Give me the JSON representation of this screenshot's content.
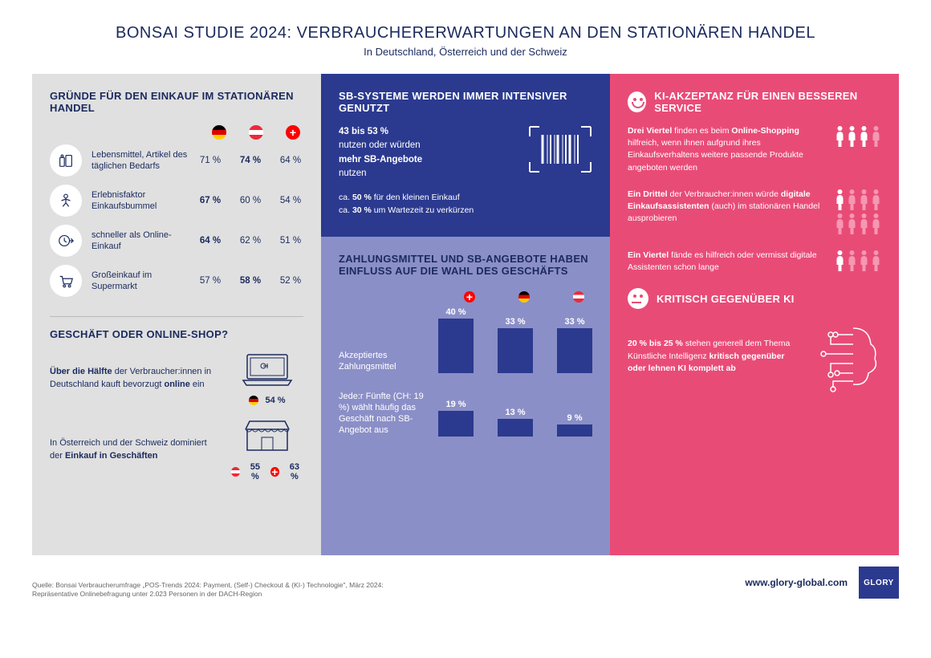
{
  "header": {
    "title": "BONSAI STUDIE 2024: VERBRAUCHERERWARTUNGEN AN DEN STATIONÄREN HANDEL",
    "subtitle": "In Deutschland, Österreich und der Schweiz"
  },
  "colors": {
    "primary_blue": "#2b3a8f",
    "text_blue": "#1a2a5e",
    "light_gray_bg": "#e0e0e0",
    "lavender_bg": "#8b8fc7",
    "pink_bg": "#e94b77",
    "pink_light": "#f598b2"
  },
  "left": {
    "reasons_title": "GRÜNDE FÜR DEN EINKAUF IM STATIONÄREN HANDEL",
    "rows": [
      {
        "label": "Lebensmittel, Artikel des täglichen Bedarfs",
        "de": "71 %",
        "at": "74 %",
        "ch": "64 %",
        "bold_idx": 1
      },
      {
        "label": "Erlebnisfaktor Einkaufsbummel",
        "de": "67 %",
        "at": "60 %",
        "ch": "54 %",
        "bold_idx": 0
      },
      {
        "label": "schneller als Online-Einkauf",
        "de": "64 %",
        "at": "62 %",
        "ch": "51 %",
        "bold_idx": 0
      },
      {
        "label": "Großeinkauf im Supermarkt",
        "de": "57 %",
        "at": "58 %",
        "ch": "52 %",
        "bold_idx": 1
      }
    ],
    "shop_title": "GESCHÄFT ODER ONLINE-SHOP?",
    "shop_de_text": "<b>Über die Hälfte</b> der Verbraucher:innen in Deutschland kauft bevorzugt <b>online</b> ein",
    "shop_de_pct": "54 %",
    "shop_atch_text": "In Österreich und der Schweiz dominiert der <b>Einkauf in Geschäften</b>",
    "shop_at_pct": "55 %",
    "shop_ch_pct": "63 %"
  },
  "middle": {
    "top_title": "SB-SYSTEME WERDEN IMMER INTENSIVER GENUTZT",
    "top_main": "<b>43 bis 53 %</b><br>nutzen oder würden<br><b>mehr SB-Angebote</b><br>nutzen",
    "top_sub1": "ca. <b>50 %</b> für den kleinen Einkauf",
    "top_sub2": "ca. <b>30 %</b> um Wartezeit zu verkürzen",
    "bot_title": "ZAHLUNGSMITTEL UND SB-ANGEBOTE HABEN EINFLUSS AUF DIE WAHL DES GESCHÄFTS",
    "bar1": {
      "label": "Akzeptiertes Zahlungsmittel",
      "values": [
        {
          "flag": "ch",
          "pct": "40 %",
          "height": 68
        },
        {
          "flag": "de",
          "pct": "33 %",
          "height": 56
        },
        {
          "flag": "at",
          "pct": "33 %",
          "height": 56
        }
      ]
    },
    "bar2": {
      "label": "Jede:r Fünfte (CH: 19 %) wählt häufig das Geschäft nach SB-Angebot aus",
      "values": [
        {
          "pct": "19 %",
          "height": 32
        },
        {
          "pct": "13 %",
          "height": 22
        },
        {
          "pct": "9 %",
          "height": 15
        }
      ]
    }
  },
  "right": {
    "top_title": "KI-AKZEPTANZ FÜR EINEN BESSEREN SERVICE",
    "items": [
      {
        "text": "<b>Drei Viertel</b> finden es beim <b>Online-Shopping</b> hilfreich, wenn ihnen aufgrund ihres Einkaufsverhaltens weitere passende Produkte angeboten werden",
        "filled": 3,
        "total": 4
      },
      {
        "text": "<b>Ein Drittel</b> der Verbraucher:innen würde <b>digitale Einkaufsassistenten</b> (auch) im stationären Handel ausprobieren",
        "filled_pattern": "1_3",
        "total": 4
      },
      {
        "text": "<b>Ein Viertel</b> fände es hilfreich oder vermisst digitale Assistenten schon lange",
        "filled": 1,
        "total": 4
      }
    ],
    "bot_title": "KRITISCH GEGENÜBER KI",
    "bot_text": "<b>20 % bis 25 %</b> stehen generell dem Thema Künstliche Intelligenz <b>kritisch gegenüber oder lehnen KI komplett ab</b>"
  },
  "footer": {
    "source": "Quelle: Bonsai Verbraucherumfrage „POS-Trends 2024: Payment, (Self-) Checkout & (KI-) Technologie\", März 2024:\nRepräsentative Onlinebefragung unter 2.023 Personen in der DACH-Region",
    "url": "www.glory-global.com",
    "logo": "GLORY"
  }
}
